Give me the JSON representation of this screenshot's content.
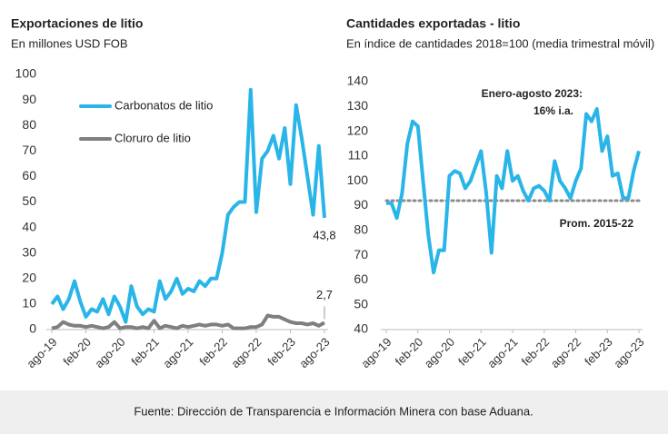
{
  "chart_data": [
    {
      "type": "line",
      "title": "Exportaciones de litio",
      "subtitle": "En millones USD FOB",
      "categories": [
        "ago-19",
        null,
        null,
        null,
        null,
        null,
        "feb-20",
        null,
        null,
        null,
        null,
        null,
        "ago-20",
        null,
        null,
        null,
        null,
        null,
        "feb-21",
        null,
        null,
        null,
        null,
        null,
        "ago-21",
        null,
        null,
        null,
        null,
        null,
        "feb-22",
        null,
        null,
        null,
        null,
        null,
        "ago-22",
        null,
        null,
        null,
        null,
        null,
        "feb-23",
        null,
        null,
        null,
        null,
        null,
        "ago-23"
      ],
      "ylim": [
        0,
        100
      ],
      "yticks": [
        0,
        10,
        20,
        30,
        40,
        50,
        60,
        70,
        80,
        90,
        100
      ],
      "grid": false,
      "legend": "upper left",
      "series": [
        {
          "name": "Carbonatos de litio",
          "color": "#29b5e8",
          "values": [
            10,
            13,
            8,
            12,
            19,
            11,
            5,
            8,
            7,
            12,
            6,
            13,
            9,
            3,
            17,
            9,
            6,
            8,
            7,
            19,
            12,
            15,
            20,
            14,
            16,
            15,
            19,
            17,
            20,
            20,
            30,
            45,
            48,
            50,
            50,
            94,
            46,
            67,
            70,
            76,
            67,
            79,
            57,
            88,
            75,
            60,
            45,
            72,
            43.8
          ],
          "value_labels": [
            null,
            null,
            null,
            null,
            null,
            null,
            null,
            null,
            null,
            null,
            null,
            null,
            null,
            null,
            null,
            null,
            null,
            null,
            null,
            null,
            null,
            null,
            null,
            null,
            null,
            null,
            null,
            null,
            null,
            null,
            null,
            null,
            null,
            null,
            null,
            null,
            null,
            null,
            null,
            null,
            null,
            null,
            null,
            null,
            null,
            null,
            null,
            null,
            "43,8"
          ]
        },
        {
          "name": "Cloruro de litio",
          "color": "#7f7f7f",
          "values": [
            0.5,
            1,
            3,
            2,
            1.5,
            1.5,
            1,
            1.5,
            1,
            0.5,
            1,
            3,
            0.5,
            1,
            1,
            0.5,
            1,
            0.5,
            3.5,
            0.5,
            1.5,
            1,
            0.5,
            1.5,
            1,
            1.5,
            2,
            1.5,
            2,
            2,
            1.5,
            2,
            0.5,
            0.5,
            0.5,
            1,
            1,
            2,
            5.5,
            5,
            5,
            4,
            3,
            2.5,
            2.5,
            2,
            2.5,
            1.5,
            2.7
          ],
          "value_labels": [
            null,
            null,
            null,
            null,
            null,
            null,
            null,
            null,
            null,
            null,
            null,
            null,
            null,
            null,
            null,
            null,
            null,
            null,
            null,
            null,
            null,
            null,
            null,
            null,
            null,
            null,
            null,
            null,
            null,
            null,
            null,
            null,
            null,
            null,
            null,
            null,
            null,
            null,
            null,
            null,
            null,
            null,
            null,
            null,
            null,
            null,
            null,
            null,
            "2,7"
          ]
        }
      ]
    },
    {
      "type": "line",
      "title": "Cantidades exportadas - litio",
      "subtitle": "En índice de cantidades 2018=100 (media trimestral móvil)",
      "categories": [
        "ago-19",
        null,
        null,
        null,
        null,
        null,
        "feb-20",
        null,
        null,
        null,
        null,
        null,
        "ago-20",
        null,
        null,
        null,
        null,
        null,
        "feb-21",
        null,
        null,
        null,
        null,
        null,
        "ago-21",
        null,
        null,
        null,
        null,
        null,
        "feb-22",
        null,
        null,
        null,
        null,
        null,
        "ago-22",
        null,
        null,
        null,
        null,
        null,
        "feb-23",
        null,
        null,
        null,
        null,
        null,
        "ago-23"
      ],
      "ylim": [
        40,
        140
      ],
      "yticks": [
        40,
        50,
        60,
        70,
        80,
        90,
        100,
        110,
        120,
        130,
        140
      ],
      "grid": false,
      "series": [
        {
          "name": null,
          "color": "#29b5e8",
          "values": [
            91,
            91,
            85,
            95,
            115,
            124,
            122,
            100,
            78,
            63,
            72,
            72,
            102,
            104,
            103,
            97,
            100,
            106,
            112,
            95,
            71,
            102,
            97,
            112,
            100,
            102,
            96,
            92,
            97,
            98,
            96,
            92,
            108,
            100,
            97,
            93,
            100,
            105,
            127,
            124,
            129,
            112,
            118,
            102,
            103,
            93,
            93,
            104,
            112
          ]
        }
      ],
      "reference_lines": [
        {
          "value": 92,
          "label": "Prom. 2015-22",
          "color": "#8c8c8c"
        }
      ],
      "annotations": [
        "Enero-agosto 2023:",
        "16% i.a."
      ]
    }
  ],
  "footer": "Fuente: Dirección de Transparencia e Información Minera con base Aduana."
}
